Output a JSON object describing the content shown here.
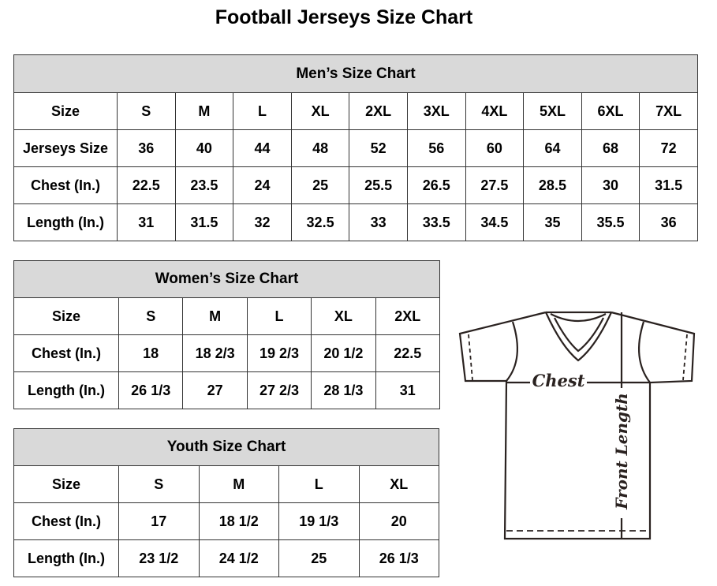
{
  "title": "Football Jerseys Size Chart",
  "men": {
    "heading": "Men’s Size Chart",
    "rows": [
      [
        "Size",
        "S",
        "M",
        "L",
        "XL",
        "2XL",
        "3XL",
        "4XL",
        "5XL",
        "6XL",
        "7XL"
      ],
      [
        "Jerseys Size",
        "36",
        "40",
        "44",
        "48",
        "52",
        "56",
        "60",
        "64",
        "68",
        "72"
      ],
      [
        "Chest (In.)",
        "22.5",
        "23.5",
        "24",
        "25",
        "25.5",
        "26.5",
        "27.5",
        "28.5",
        "30",
        "31.5"
      ],
      [
        "Length (In.)",
        "31",
        "31.5",
        "32",
        "32.5",
        "33",
        "33.5",
        "34.5",
        "35",
        "35.5",
        "36"
      ]
    ]
  },
  "women": {
    "heading": "Women’s Size Chart",
    "rows": [
      [
        "Size",
        "S",
        "M",
        "L",
        "XL",
        "2XL"
      ],
      [
        "Chest (In.)",
        "18",
        "18 2/3",
        "19 2/3",
        "20 1/2",
        "22.5"
      ],
      [
        "Length (In.)",
        "26 1/3",
        "27",
        "27 2/3",
        "28 1/3",
        "31"
      ]
    ]
  },
  "youth": {
    "heading": "Youth Size Chart",
    "rows": [
      [
        "Size",
        "S",
        "M",
        "L",
        "XL"
      ],
      [
        "Chest (In.)",
        "17",
        "18 1/2",
        "19 1/3",
        "20"
      ],
      [
        "Length (In.)",
        "23 1/2",
        "24 1/2",
        "25",
        "26 1/3"
      ]
    ]
  },
  "diagram": {
    "chest_label": "Chest",
    "length_label": "Front Length"
  }
}
